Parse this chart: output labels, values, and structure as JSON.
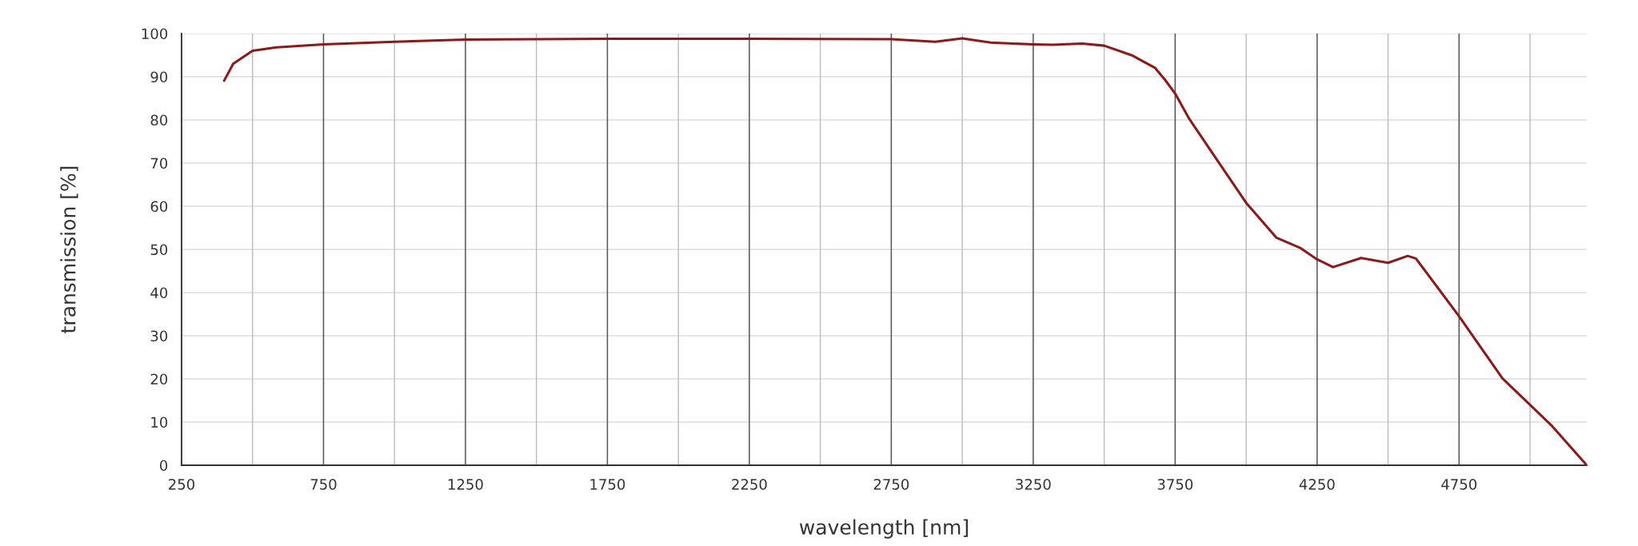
{
  "chart_data": {
    "type": "line",
    "xlabel": "wavelength [nm]",
    "ylabel": "transmission [%]",
    "xlim": [
      250,
      5200
    ],
    "ylim": [
      0,
      100
    ],
    "xticks": [
      250,
      {
        "value": 500,
        "label": null
      },
      750,
      {
        "value": 1000,
        "label": null
      },
      1250,
      {
        "value": 1500,
        "label": null
      },
      1750,
      {
        "value": 2000,
        "label": null
      },
      2250,
      {
        "value": 2500,
        "label": null
      },
      2750,
      {
        "value": 3000,
        "label": null
      },
      3250,
      {
        "value": 3500,
        "label": null
      },
      3750,
      {
        "value": 4000,
        "label": null
      },
      4250,
      {
        "value": 4500,
        "label": null
      },
      4750,
      {
        "value": 5000,
        "label": null
      }
    ],
    "yticks": [
      0,
      10,
      20,
      30,
      40,
      50,
      60,
      70,
      80,
      90,
      100
    ],
    "grid": true,
    "marker": "none",
    "line_style": "solid",
    "series": [
      {
        "color": "#8b1a1a",
        "x": [
          400,
          432,
          500,
          584,
          750,
          1000,
          1250,
          1750,
          2250,
          2750,
          2905,
          3000,
          3100,
          3250,
          3318,
          3423,
          3500,
          3600,
          3680,
          3714,
          3750,
          3800,
          3900,
          4000,
          4107,
          4189,
          4250,
          4306,
          4405,
          4500,
          4569,
          4598,
          4750,
          4903,
          5000,
          5079,
          5200
        ],
        "values": [
          89.1,
          93.0,
          96.0,
          96.8,
          97.5,
          98.1,
          98.6,
          98.8,
          98.8,
          98.7,
          98.1,
          98.9,
          97.9,
          97.5,
          97.4,
          97.7,
          97.2,
          94.9,
          92.0,
          89.3,
          86.1,
          80.2,
          70.5,
          60.8,
          52.7,
          50.4,
          47.7,
          45.9,
          48.0,
          46.9,
          48.5,
          47.9,
          34.5,
          20.1,
          14.0,
          9.0,
          0
        ]
      }
    ]
  }
}
